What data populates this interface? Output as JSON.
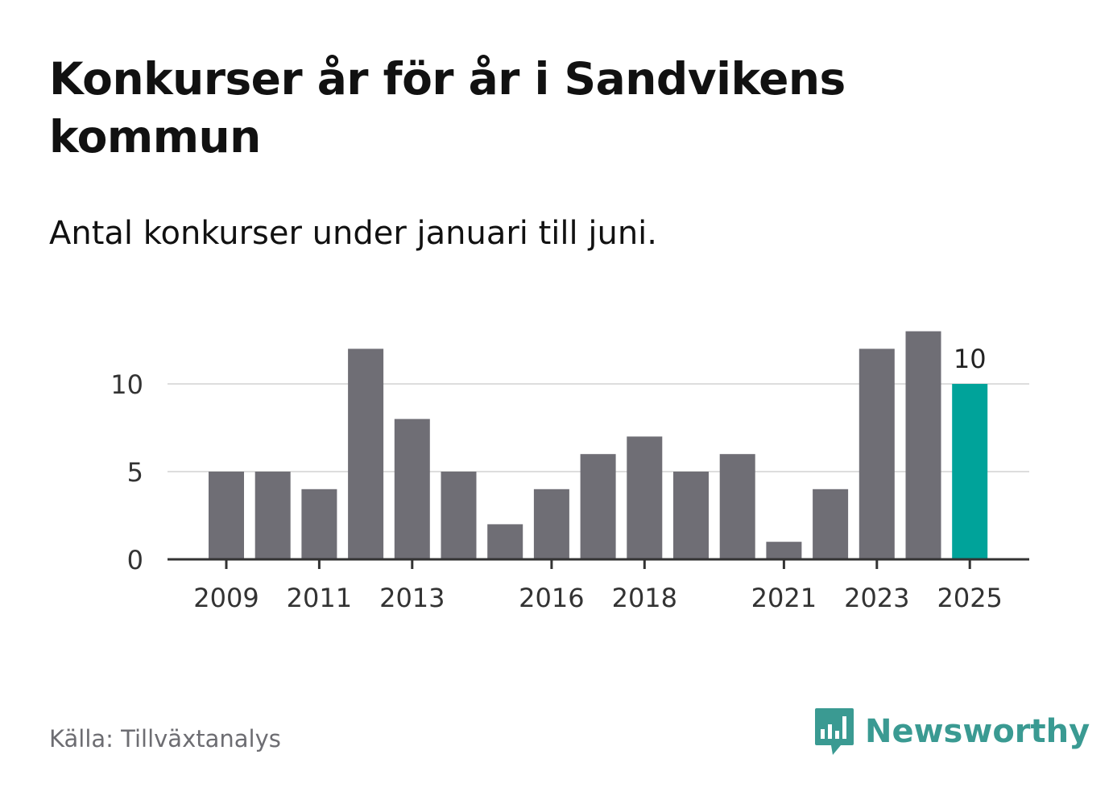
{
  "title": "Konkurser år för år i Sandvikens kommun",
  "subtitle": "Antal konkurser under januari till juni.",
  "source": "Källa: Tillväxtanalys",
  "brand": {
    "name": "Newsworthy",
    "color": "#3a9a92",
    "icon": "bar-chart-speech-bubble-icon"
  },
  "chart_data": {
    "type": "bar",
    "categories": [
      "2009",
      "2010",
      "2011",
      "2012",
      "2013",
      "2014",
      "2015",
      "2016",
      "2017",
      "2018",
      "2019",
      "2020",
      "2021",
      "2022",
      "2023",
      "2024",
      "2025"
    ],
    "values": [
      5,
      5,
      4,
      12,
      8,
      5,
      2,
      4,
      6,
      7,
      5,
      6,
      1,
      4,
      12,
      13,
      10
    ],
    "x_tick_labels": [
      "2009",
      "2011",
      "2013",
      "2016",
      "2018",
      "2021",
      "2023",
      "2025"
    ],
    "y_ticks": [
      0,
      5,
      10
    ],
    "ylim": [
      0,
      13
    ],
    "grid": true,
    "highlight": {
      "category": "2025",
      "label": "10"
    },
    "colors": {
      "bar": "#6f6e75",
      "highlight": "#00a39a",
      "grid": "#dddddd",
      "axis": "#333333"
    }
  }
}
